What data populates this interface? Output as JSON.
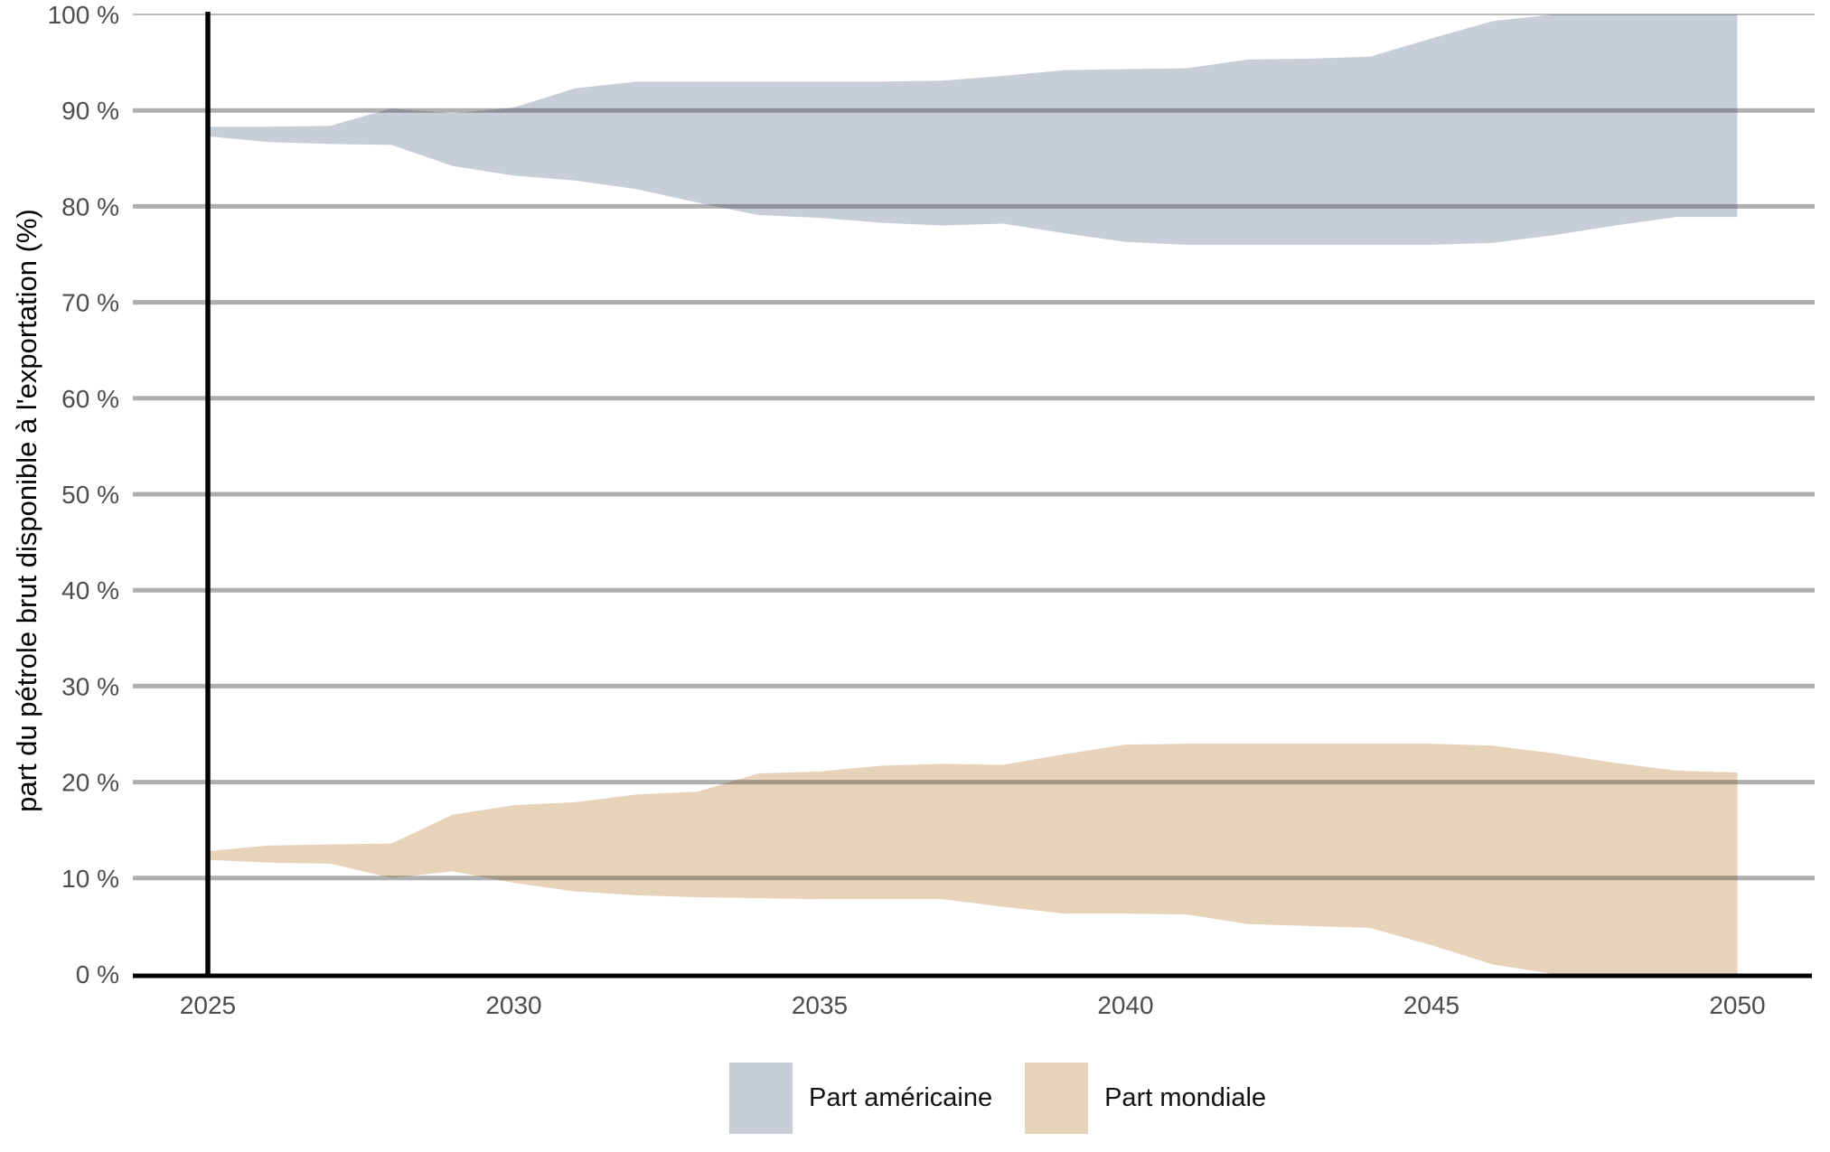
{
  "chart_data": {
    "type": "area",
    "title": "",
    "xlabel": "",
    "ylabel": "part du pétrole brut disponible à l'exportation (%)",
    "x": [
      2025,
      2026,
      2027,
      2028,
      2029,
      2030,
      2031,
      2032,
      2033,
      2034,
      2035,
      2036,
      2037,
      2038,
      2039,
      2040,
      2041,
      2042,
      2043,
      2044,
      2045,
      2046,
      2047,
      2048,
      2049,
      2050
    ],
    "series": [
      {
        "name": "Part américaine",
        "color": "#c7ced7",
        "lower": [
          87.3,
          86.7,
          86.5,
          86.4,
          84.2,
          83.2,
          82.7,
          81.8,
          80.4,
          79.1,
          78.8,
          78.3,
          78.0,
          78.2,
          77.2,
          76.3,
          76.0,
          76.0,
          76.0,
          76.0,
          76.0,
          76.2,
          77.0,
          78.0,
          78.9,
          78.9
        ],
        "upper": [
          88.3,
          88.3,
          88.4,
          90.2,
          89.7,
          90.3,
          92.3,
          93.0,
          93.0,
          93.0,
          93.0,
          93.0,
          93.1,
          93.6,
          94.2,
          94.3,
          94.4,
          95.3,
          95.4,
          95.6,
          97.5,
          99.3,
          100,
          100,
          100,
          100
        ]
      },
      {
        "name": "Part mondiale",
        "color": "#e6d3ba",
        "lower": [
          11.9,
          11.6,
          11.5,
          10.0,
          10.7,
          9.5,
          8.6,
          8.2,
          8.0,
          7.9,
          7.8,
          7.8,
          7.8,
          7.0,
          6.3,
          6.3,
          6.2,
          5.2,
          5.0,
          4.8,
          3.0,
          1.0,
          0,
          0,
          0,
          0
        ],
        "upper": [
          12.8,
          13.4,
          13.5,
          13.6,
          16.6,
          17.6,
          17.9,
          18.7,
          19.0,
          20.9,
          21.1,
          21.7,
          21.9,
          21.8,
          22.9,
          23.9,
          24.0,
          24.0,
          24.0,
          24.0,
          24.0,
          23.8,
          23.0,
          22.0,
          21.2,
          21.0
        ]
      }
    ],
    "ylim": [
      0,
      100
    ],
    "xlim": [
      2025,
      2050
    ],
    "y_ticks": [
      0,
      10,
      20,
      30,
      40,
      50,
      60,
      70,
      80,
      90,
      100
    ],
    "y_tick_labels": [
      "0 %",
      "10 %",
      "20 %",
      "30 %",
      "40 %",
      "50 %",
      "60 %",
      "70 %",
      "80 %",
      "90 %",
      "100 %"
    ],
    "x_ticks": [
      2025,
      2030,
      2035,
      2040,
      2045,
      2050
    ],
    "x_tick_labels": [
      "2025",
      "2030",
      "2035",
      "2040",
      "2045",
      "2050"
    ],
    "reference_line_x": 2025,
    "grid": "horizontal",
    "legend_position": "bottom"
  },
  "legend": {
    "items": [
      {
        "label": "Part américaine",
        "color": "#c7ced7"
      },
      {
        "label": "Part mondiale",
        "color": "#e6d3ba"
      }
    ]
  },
  "colors": {
    "band_american": "#c7ced7",
    "band_world": "#e6d3ba",
    "gridline": "#b2b2b2",
    "axis_line": "#000000",
    "reference_line": "#000000",
    "tick_label": "#4d4d4d",
    "axis_title": "#000000",
    "background": "#ffffff"
  }
}
